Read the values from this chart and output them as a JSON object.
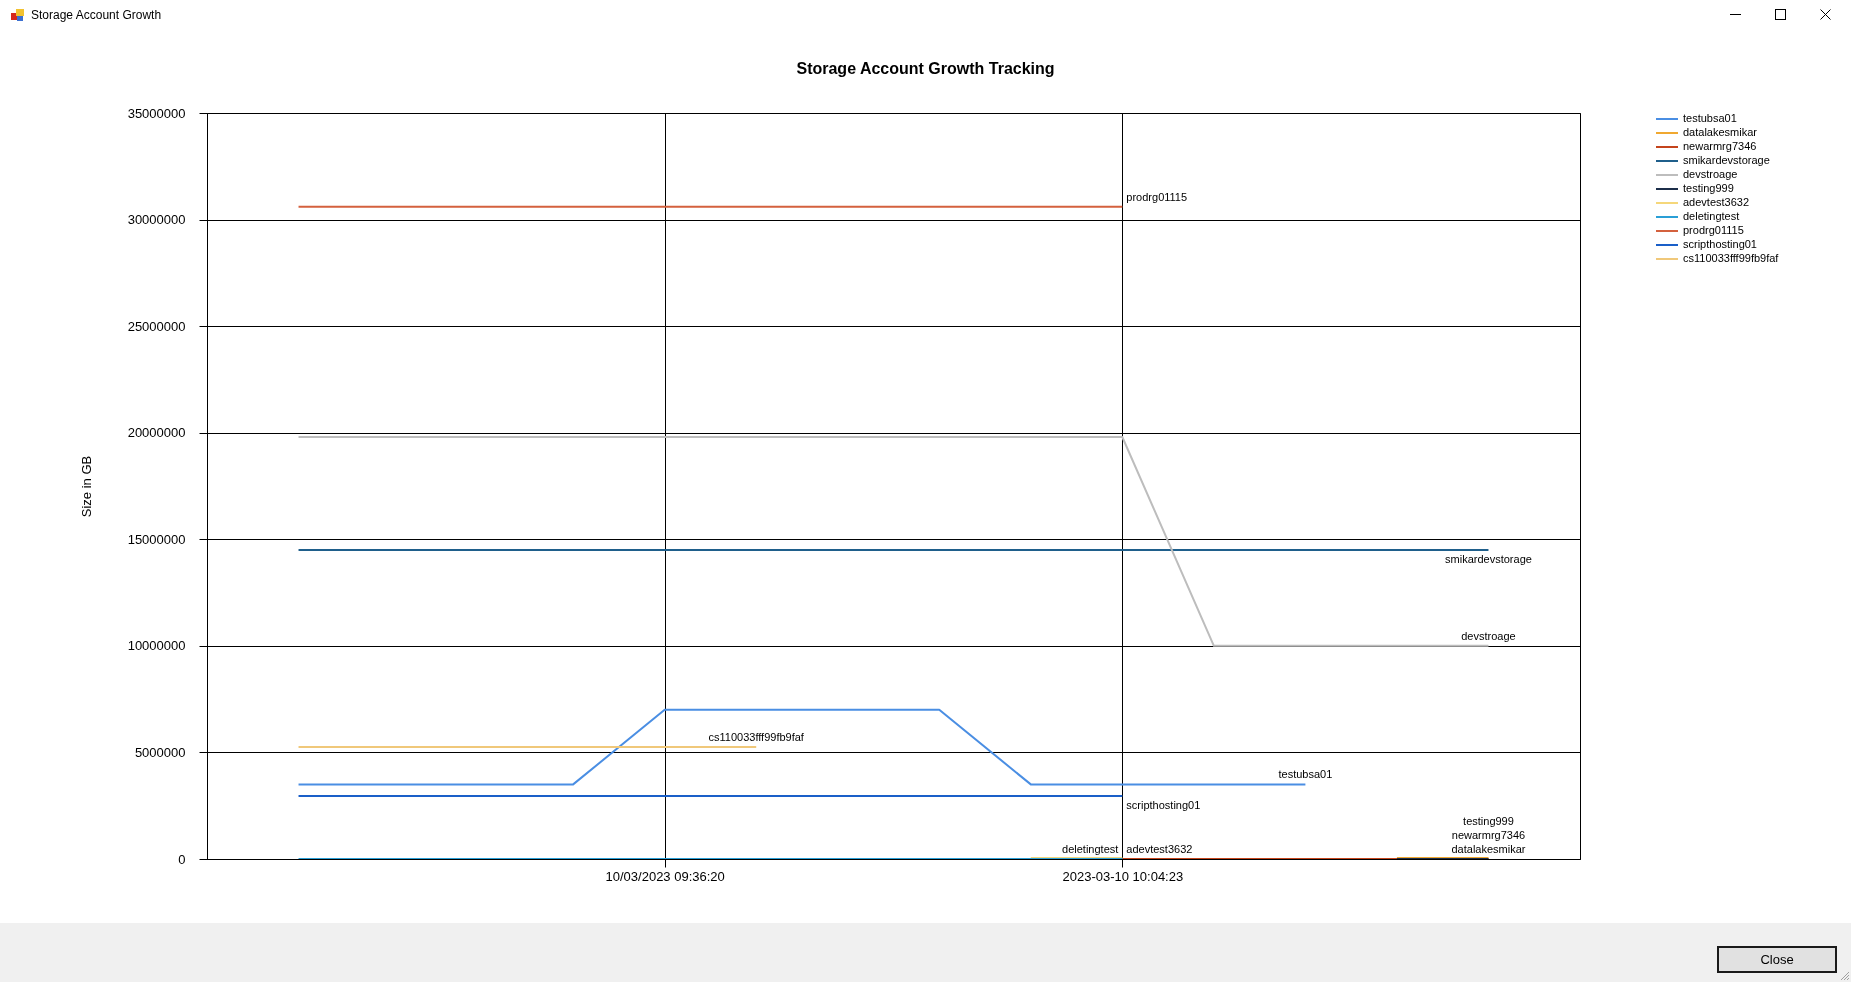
{
  "chart_data": {
    "type": "line",
    "title": "Storage Account Growth Tracking",
    "ylabel": "Size in GB",
    "categories": [
      null,
      null,
      null,
      null,
      "10/03/2023 09:36:20",
      null,
      null,
      null,
      null,
      "2023-03-10 10:04:23",
      null,
      null,
      null,
      null
    ],
    "ylim": [
      0,
      35000000
    ],
    "yticks": [
      0,
      5000000,
      10000000,
      15000000,
      20000000,
      25000000,
      30000000,
      35000000
    ],
    "grid": true,
    "legend": "top right",
    "series": [
      {
        "name": "testubsa01",
        "color": "#4a8ee3",
        "values": [
          3500000,
          3500000,
          3500000,
          3500000,
          7000000,
          7000000,
          7000000,
          7000000,
          3500000,
          3500000,
          3500000,
          3500000,
          null,
          null
        ]
      },
      {
        "name": "datalakesmikar",
        "color": "#f0a830",
        "values": [
          null,
          null,
          null,
          null,
          null,
          null,
          null,
          null,
          null,
          null,
          null,
          null,
          0,
          0
        ]
      },
      {
        "name": "newarmrg7346",
        "color": "#c4441c",
        "values": [
          null,
          null,
          null,
          null,
          null,
          null,
          null,
          null,
          null,
          0,
          0,
          0,
          0,
          0
        ]
      },
      {
        "name": "smikardevstorage",
        "color": "#1f5f8b",
        "values": [
          14500000,
          14500000,
          14500000,
          14500000,
          14500000,
          14500000,
          14500000,
          14500000,
          14500000,
          14500000,
          14500000,
          14500000,
          14500000,
          14500000
        ]
      },
      {
        "name": "devstroage",
        "color": "#bdbdbd",
        "values": [
          19800000,
          19800000,
          19800000,
          19800000,
          19800000,
          19800000,
          19800000,
          19800000,
          19800000,
          19800000,
          10000000,
          10000000,
          10000000,
          10000000
        ]
      },
      {
        "name": "testing999",
        "color": "#1c2e4a",
        "values": [
          null,
          null,
          null,
          null,
          null,
          null,
          null,
          null,
          null,
          null,
          null,
          null,
          0,
          0
        ]
      },
      {
        "name": "adevtest3632",
        "color": "#f5d77a",
        "values": [
          null,
          null,
          null,
          null,
          null,
          null,
          null,
          null,
          0,
          0,
          null,
          null,
          null,
          null
        ]
      },
      {
        "name": "deletingtest",
        "color": "#2a9fd6",
        "values": [
          0,
          0,
          0,
          0,
          0,
          0,
          0,
          0,
          0,
          0,
          null,
          null,
          null,
          null
        ]
      },
      {
        "name": "prodrg01115",
        "color": "#d4613e",
        "values": [
          30600000,
          30600000,
          30600000,
          30600000,
          30600000,
          30600000,
          30600000,
          30600000,
          30600000,
          30600000,
          null,
          null,
          null,
          null
        ]
      },
      {
        "name": "scripthosting01",
        "color": "#1a5fc8",
        "values": [
          2950000,
          2950000,
          2950000,
          2950000,
          2950000,
          2950000,
          2950000,
          2950000,
          2950000,
          2950000,
          null,
          null,
          null,
          null
        ]
      },
      {
        "name": "cs110033fff99fb9faf",
        "color": "#f0c87a",
        "values": [
          5250000,
          5250000,
          5250000,
          5250000,
          5250000,
          5250000,
          null,
          null,
          null,
          null,
          null,
          null,
          null,
          null
        ]
      }
    ],
    "annotations": [
      "Storage Account Growth",
      "Close"
    ]
  }
}
